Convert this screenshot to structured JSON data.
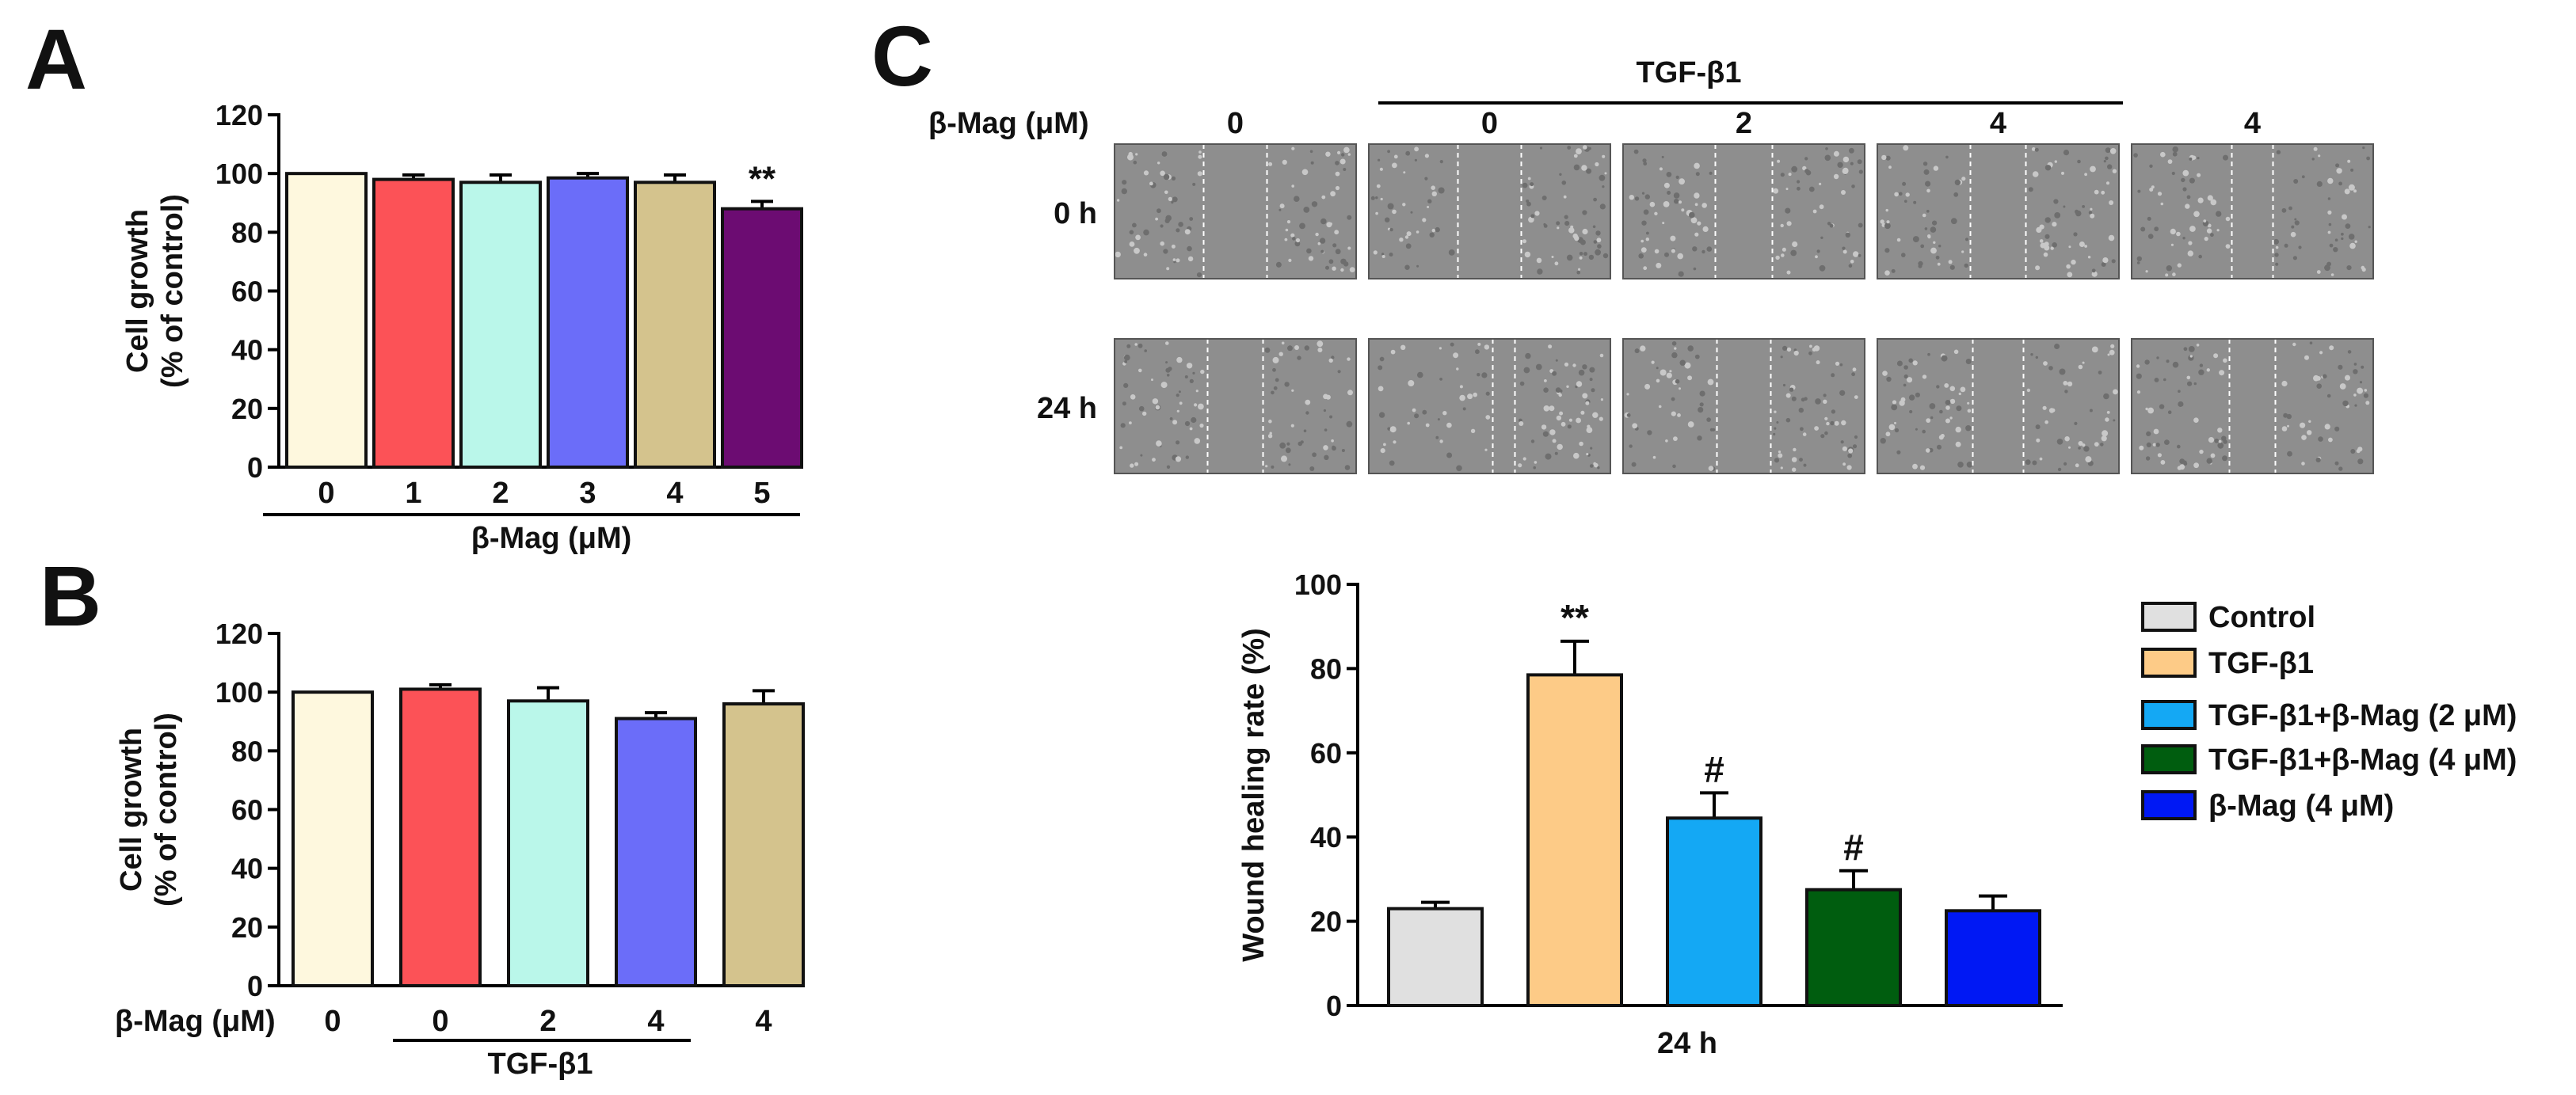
{
  "panels": {
    "A": {
      "letter": "A"
    },
    "B": {
      "letter": "B"
    },
    "C": {
      "letter": "C"
    }
  },
  "micrographs": {
    "header_label": "β-Mag (μM)",
    "group_label": "TGF-β1",
    "columns": [
      "0",
      "0",
      "2",
      "4",
      "4"
    ],
    "rows": [
      "0 h",
      "24 h"
    ]
  },
  "legend": {
    "placement": "right",
    "entries": [
      {
        "label": "Control",
        "color": "#e0e0e0"
      },
      {
        "label": "TGF-β1",
        "color": "#fdcb87"
      },
      {
        "label": "TGF-β1+β-Mag (2 μM)",
        "color": "#14a8f4"
      },
      {
        "label": "TGF-β1+β-Mag (4 μM)",
        "color": "#005d0f"
      },
      {
        "label": "β-Mag (4 μM)",
        "color": "#0018f4"
      }
    ]
  },
  "chart_data": [
    {
      "id": "A",
      "type": "bar",
      "categories": [
        "0",
        "1",
        "2",
        "3",
        "4",
        "5"
      ],
      "values": [
        100,
        98,
        97,
        98.5,
        97,
        88
      ],
      "errors": [
        0,
        1.5,
        2.5,
        1.5,
        2.5,
        2.5
      ],
      "colors": [
        "#fef8de",
        "#fc5257",
        "#baf7ea",
        "#6b6df9",
        "#d4c38d",
        "#6c0c72"
      ],
      "annotations": [
        "",
        "",
        "",
        "",
        "",
        "**"
      ],
      "ylabel": [
        "Cell growth",
        "(% of control)"
      ],
      "xlabel": "β-Mag (μM)",
      "ylim": [
        0,
        120
      ],
      "yticks": [
        0,
        20,
        40,
        60,
        80,
        100,
        120
      ]
    },
    {
      "id": "B",
      "type": "bar",
      "categories": [
        "0",
        "0",
        "2",
        "4",
        "4"
      ],
      "row_label": "β-Mag (μM)",
      "group_label": "TGF-β1",
      "values": [
        100,
        101,
        97,
        91,
        96
      ],
      "errors": [
        0,
        1.5,
        4.5,
        2,
        4.5
      ],
      "colors": [
        "#fef8de",
        "#fc5257",
        "#baf7ea",
        "#6b6df9",
        "#d4c38d"
      ],
      "ylabel": [
        "Cell growth",
        "(% of control)"
      ],
      "ylim": [
        0,
        120
      ],
      "yticks": [
        0,
        20,
        40,
        60,
        80,
        100,
        120
      ]
    },
    {
      "id": "C",
      "type": "bar",
      "categories": [
        "Control",
        "TGF-β1",
        "TGF-β1+β-Mag (2 μM)",
        "TGF-β1+β-Mag (4 μM)",
        "β-Mag (4 μM)"
      ],
      "values": [
        23,
        78.5,
        44.5,
        27.5,
        22.5
      ],
      "errors": [
        1.5,
        8,
        6,
        4.5,
        3.5
      ],
      "colors": [
        "#e0e0e0",
        "#fdcb87",
        "#14a8f4",
        "#005d0f",
        "#0018f4"
      ],
      "annotations": [
        "",
        "**",
        "#",
        "#",
        ""
      ],
      "ylabel": "Wound healing rate (%)",
      "xlabel": "24 h",
      "ylim": [
        0,
        100
      ],
      "yticks": [
        0,
        20,
        40,
        60,
        80,
        100
      ]
    }
  ]
}
